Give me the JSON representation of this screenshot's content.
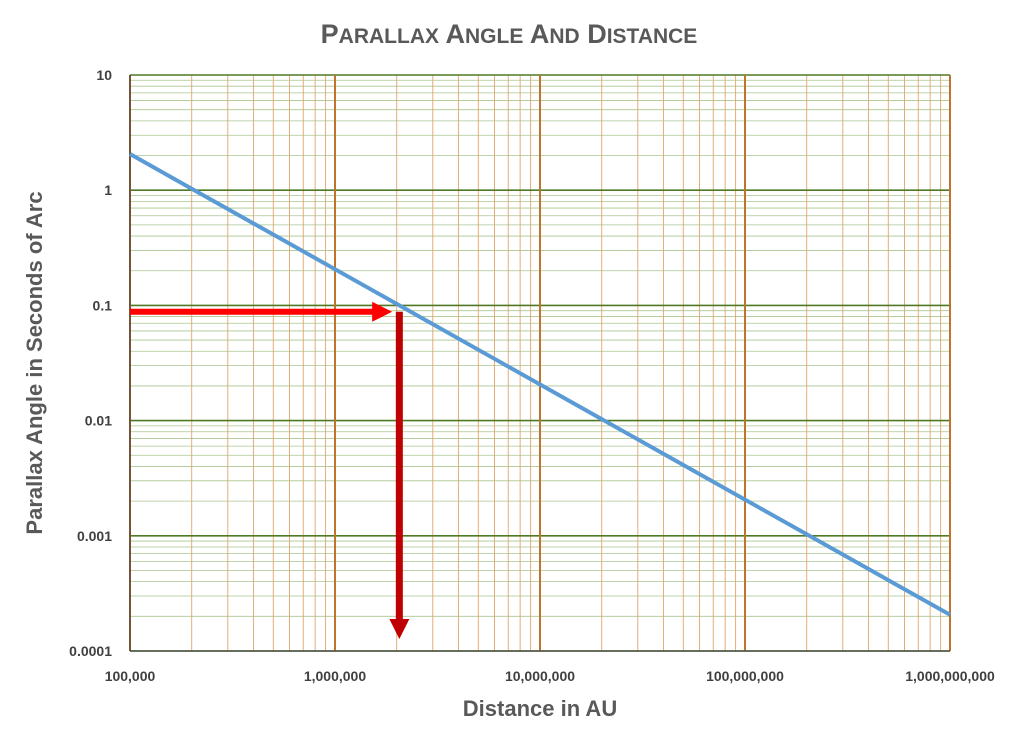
{
  "chart_data": {
    "type": "line",
    "title": "Parallax Angle and Distance",
    "xlabel": "Distance in AU",
    "ylabel": "Parallax Angle in Seconds of Arc",
    "x_scale": "log",
    "y_scale": "log",
    "xlim": [
      100000,
      1000000000
    ],
    "ylim": [
      0.0001,
      10
    ],
    "x_ticks": [
      "100,000",
      "1,000,000",
      "10,000,000",
      "100,000,000",
      "1,000,000,000"
    ],
    "y_ticks": [
      "10",
      "1",
      "0.1",
      "0.01",
      "0.001",
      "0.0001"
    ],
    "grid": true,
    "legend": "none",
    "series": [
      {
        "x": [
          100000,
          200000,
          2000000,
          20000000,
          200000000,
          1000000000
        ],
        "y": [
          2.06,
          1.03,
          0.103,
          0.0103,
          0.00103,
          0.000206
        ],
        "color": "#5b9bd5"
      }
    ],
    "annotations": [
      {
        "type": "arrow",
        "direction": "right",
        "from": [
          100000,
          0.088
        ],
        "to": [
          1900000,
          0.088
        ],
        "color": "#ff0000"
      },
      {
        "type": "arrow",
        "direction": "down",
        "from": [
          2060000,
          0.088
        ],
        "to": [
          2060000,
          0.0001
        ],
        "color": "#c00000"
      }
    ],
    "colors": {
      "minor_grid_x": "#e3a46a",
      "major_grid_x": "#c0732a",
      "minor_grid_y": "#a9c58f",
      "major_grid_y": "#4f7a24",
      "line": "#5b9bd5"
    }
  }
}
